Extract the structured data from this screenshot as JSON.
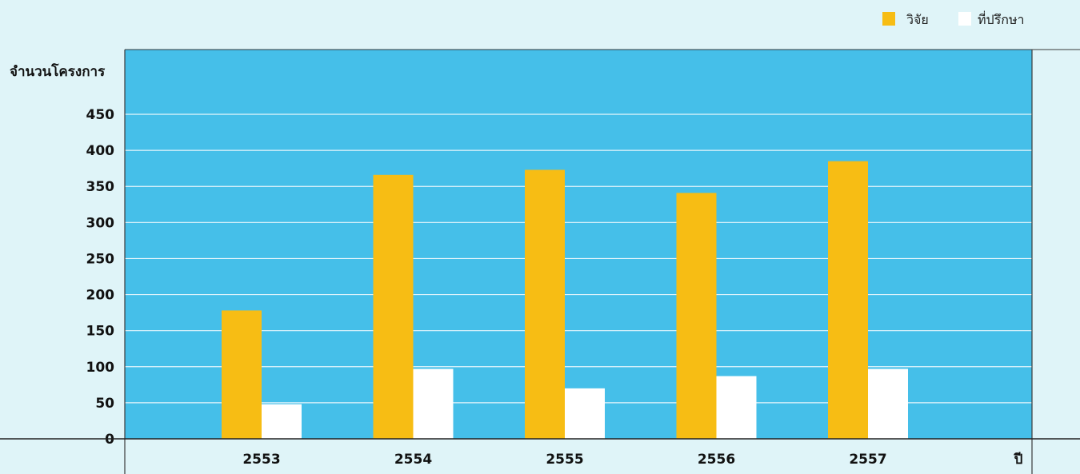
{
  "chart_data": {
    "type": "bar",
    "ylabel": "จำนวนโครงการ",
    "xlabel": "ปี",
    "categories": [
      "2553",
      "2554",
      "2555",
      "2556",
      "2557"
    ],
    "series": [
      {
        "name": "วิจัย",
        "color": "#f7bd14",
        "values": [
          178,
          366,
          373,
          341,
          385
        ]
      },
      {
        "name": "ที่ปรึกษา",
        "color": "#ffffff",
        "values": [
          48,
          97,
          70,
          87,
          97
        ]
      }
    ],
    "ylim": [
      0,
      450
    ],
    "yticks": [
      0,
      50,
      100,
      150,
      200,
      250,
      300,
      350,
      400,
      450
    ],
    "grid": true,
    "legend_position": "top-right",
    "plot_background": "#45bfe9"
  }
}
